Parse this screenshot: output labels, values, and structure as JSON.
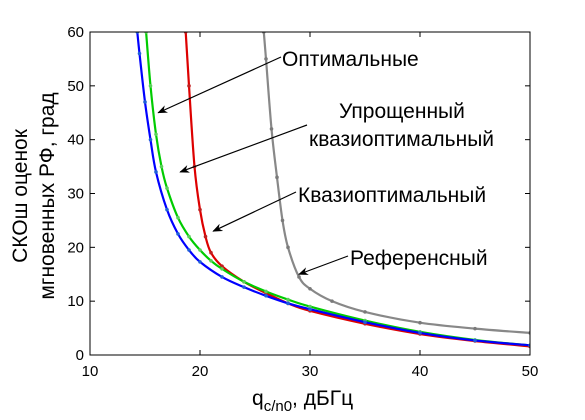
{
  "chart_data": {
    "type": "line",
    "xlabel_main": "q",
    "xlabel_sub": "c/n0",
    "xlabel_unit": ", дБГц",
    "ylabel_line1": "СКОш оценок",
    "ylabel_line2": "мгновенных РФ, град",
    "xlim": [
      10,
      50
    ],
    "ylim": [
      0,
      60
    ],
    "xticks": [
      10,
      20,
      30,
      40,
      50
    ],
    "yticks": [
      0,
      10,
      20,
      30,
      40,
      50,
      60
    ],
    "grid": false,
    "series": [
      {
        "name": "Оптимальные",
        "color": "#0000ff",
        "markers": "#1f5fd8",
        "x": [
          14.3,
          14.5,
          15,
          15.5,
          16,
          17,
          18,
          19,
          20,
          22,
          24,
          26,
          28,
          30,
          35,
          40,
          45,
          50
        ],
        "y": [
          60,
          56,
          47,
          40,
          34,
          27,
          22.5,
          19.5,
          17.3,
          14.5,
          12.6,
          11,
          9.6,
          8.5,
          6.1,
          4.1,
          2.7,
          1.8
        ]
      },
      {
        "name": "Упрощенный квазиоптимальный",
        "color": "#00cc00",
        "markers": "#5ad05a",
        "x": [
          15.1,
          15.5,
          16,
          16.5,
          17,
          18,
          19,
          20,
          21,
          22,
          24,
          26,
          28,
          30,
          35,
          40,
          45,
          50
        ],
        "y": [
          60,
          50,
          41,
          35,
          31,
          25.5,
          22,
          19.5,
          17.5,
          16,
          13.6,
          11.8,
          10.3,
          9,
          6.4,
          4.3,
          2.8,
          1.8
        ]
      },
      {
        "name": "Квазиоптимальный",
        "color": "#dd0000",
        "markers": "#c02020",
        "x": [
          18.7,
          19,
          19.5,
          20,
          20.5,
          21,
          22,
          24,
          26,
          28,
          30,
          35,
          40,
          45,
          50
        ],
        "y": [
          60,
          50,
          35,
          27,
          22,
          19,
          16.5,
          13.6,
          11.5,
          9.6,
          8.2,
          5.8,
          3.9,
          2.6,
          1.6
        ]
      },
      {
        "name": "Референсный",
        "color": "#888888",
        "markers": "#7a7a7a",
        "x": [
          25.8,
          26,
          26.5,
          27,
          27.5,
          28,
          29,
          30,
          32,
          35,
          40,
          45,
          50
        ],
        "y": [
          60,
          55,
          42,
          33,
          25,
          20,
          14.5,
          12.3,
          10,
          8,
          6,
          4.9,
          4.1
        ]
      }
    ],
    "annotations": [
      {
        "text": "Оптимальные",
        "series": 0,
        "at_x": 16.2,
        "at_y": 45
      },
      {
        "text": "Упрощенный",
        "series": 1,
        "at_x": 18.2,
        "at_y": 34
      },
      {
        "text": "квазиоптимальный",
        "series": 1
      },
      {
        "text": "Квазиоптимальный",
        "series": 2,
        "at_x": 21.2,
        "at_y": 23
      },
      {
        "text": "Референсный",
        "series": 3,
        "at_x": 29,
        "at_y": 15
      }
    ]
  }
}
